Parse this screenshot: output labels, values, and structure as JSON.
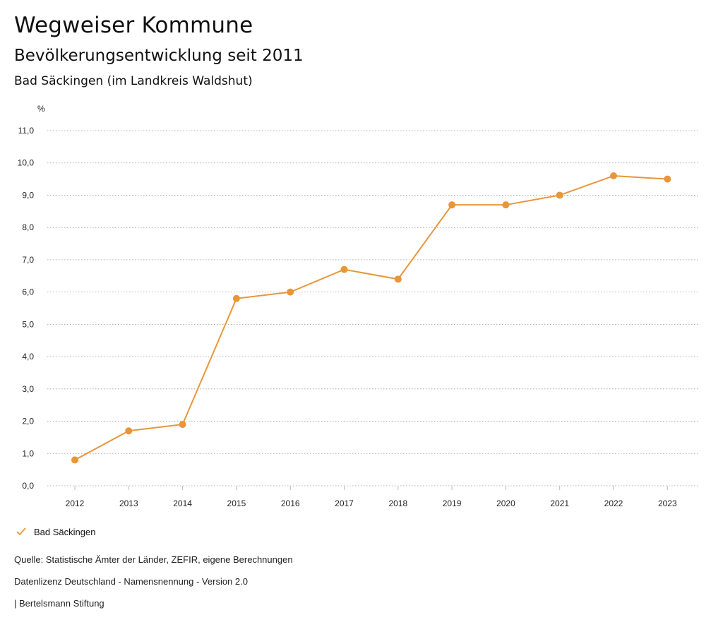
{
  "header": {
    "title": "Wegweiser Kommune",
    "subtitle": "Bevölkerungsentwicklung seit 2011",
    "region": "Bad Säckingen (im Landkreis Waldshut)"
  },
  "chart_data": {
    "type": "line",
    "ylabel": "%",
    "ylim": [
      0,
      11
    ],
    "ytick_step": 1,
    "yticks": [
      "0,0",
      "1,0",
      "2,0",
      "3,0",
      "4,0",
      "5,0",
      "6,0",
      "7,0",
      "8,0",
      "9,0",
      "10,0",
      "11,0"
    ],
    "categories": [
      "2012",
      "2013",
      "2014",
      "2015",
      "2016",
      "2017",
      "2018",
      "2019",
      "2020",
      "2021",
      "2022",
      "2023"
    ],
    "series": [
      {
        "name": "Bad Säckingen",
        "color": "#E8963A",
        "values": [
          0.8,
          1.7,
          1.9,
          5.8,
          6.0,
          6.7,
          6.4,
          8.7,
          8.7,
          9.0,
          9.6,
          9.5
        ]
      }
    ],
    "grid": "horizontal-dotted",
    "legend_position": "bottom-left"
  },
  "legend": {
    "label": "Bad Säckingen",
    "icon": "check-icon"
  },
  "footer": {
    "source": "Quelle: Statistische Ämter der Länder, ZEFIR, eigene Berechnungen",
    "license": "Datenlizenz Deutschland - Namensnennung - Version 2.0",
    "publisher": "| Bertelsmann Stiftung"
  }
}
